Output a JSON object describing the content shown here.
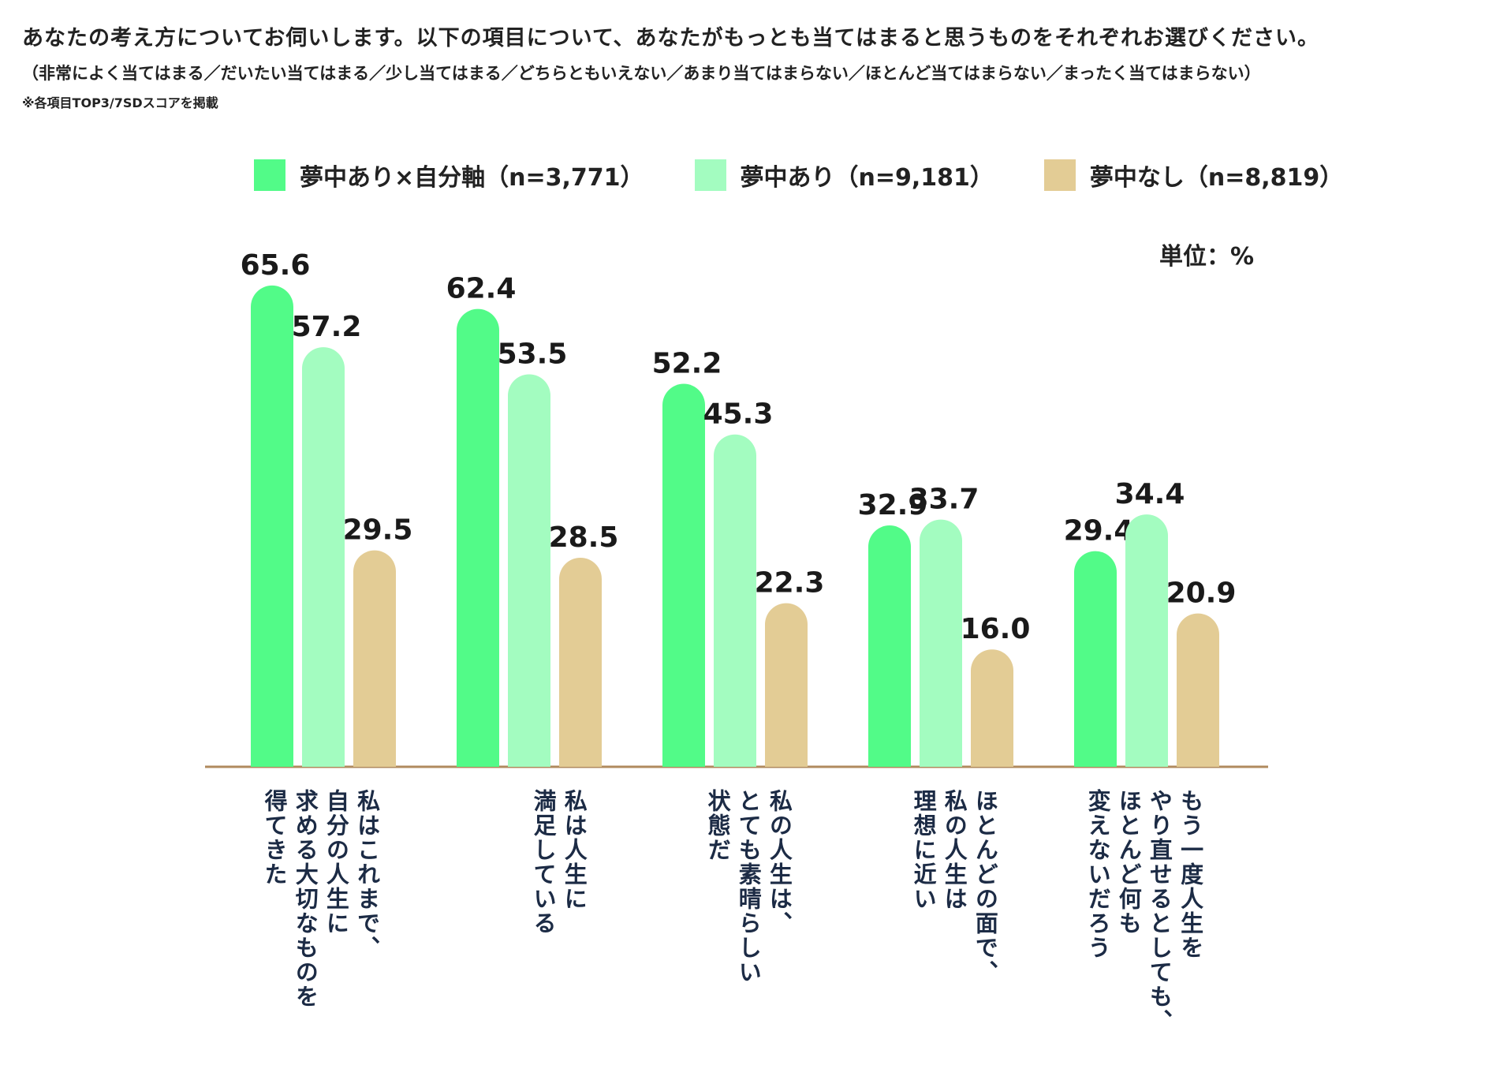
{
  "header": {
    "question": "あなたの考え方についてお伺いします。以下の項目について、あなたがもっとも当てはまると思うものをそれぞれお選びください。",
    "options": "（非常によく当てはまる／だいたい当てはまる／少し当てはまる／どちらともいえない／あまり当てはまらない／ほとんど当てはまらない／まったく当てはまらない）",
    "note": "※各項目TOP3/7SDスコアを掲載"
  },
  "chart_data": {
    "type": "bar",
    "unit_label": "単位：%",
    "ylim": [
      0,
      70
    ],
    "categories": [
      "私はこれまで、\n自分の人生に\n求める大切なものを\n得てきた",
      "私は人生に\n満足している",
      "私の人生は、\nとても素晴らしい\n状態だ",
      "ほとんどの面で、\n私の人生は\n理想に近い",
      "もう一度人生を\nやり直せるとしても、\nほとんど何も\n変えないだろう"
    ],
    "series": [
      {
        "name": "夢中あり×自分軸（n=3,771）",
        "color": "#52fb88",
        "values": [
          65.6,
          62.4,
          52.2,
          32.9,
          29.4
        ]
      },
      {
        "name": "夢中あり（n=9,181）",
        "color": "#a3fcc0",
        "values": [
          57.2,
          53.5,
          45.3,
          33.7,
          34.4
        ]
      },
      {
        "name": "夢中なし（n=8,819）",
        "color": "#e3cc95",
        "values": [
          29.5,
          28.5,
          22.3,
          16.0,
          20.9
        ]
      }
    ],
    "axis_color": "#b08a5e"
  }
}
